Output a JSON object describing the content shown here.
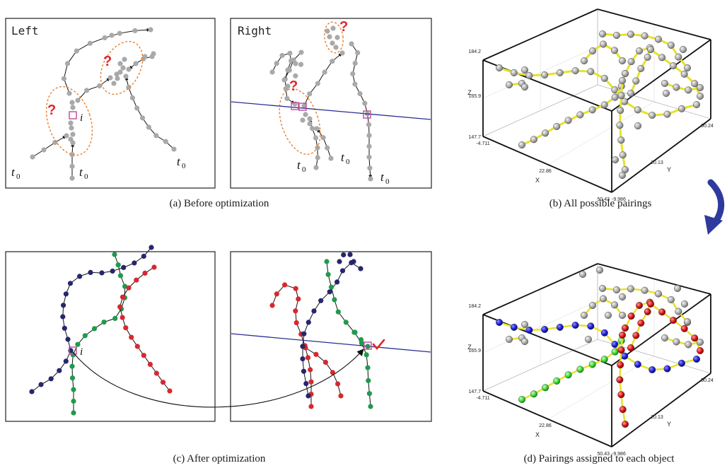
{
  "panels": {
    "a": {
      "left_title": "Left",
      "right_title": "Right",
      "caption": "(a) Before optimization",
      "question_mark": "?",
      "t_main": "t",
      "t_sub": "0",
      "i_label": "i"
    },
    "b": {
      "caption": "(b) All possible pairings"
    },
    "c": {
      "caption": "(c) After optimization",
      "i_label": "i"
    },
    "d": {
      "caption": "(d) Pairings assigned to each object"
    }
  },
  "axes3d": {
    "z_name": "Z",
    "x_name": "X",
    "y_name": "Y",
    "z_top": "184.2",
    "z_mid": "165.9",
    "z_bot": "147.7",
    "x_start": "-4.711",
    "x_mid": "22.86",
    "x_end": "50.43",
    "y_start": "-9.986",
    "y_mid": "20.13",
    "y_end": "50.24"
  },
  "colors": {
    "gray_point": "#a9a9a9",
    "navy": "#26266e",
    "green": "#1f9a4e",
    "red": "#d8282e",
    "orange_dashed": "#e9822f",
    "epipolar": "#2b2f8f",
    "pink_box": "#c04a9a",
    "yellow_link": "#e6e22a",
    "blue_3d": "#1a1adb",
    "green_3d": "#35d62e",
    "red_3d": "#d81010",
    "arrow": "#2e3a9e",
    "check": "#e0262b"
  }
}
